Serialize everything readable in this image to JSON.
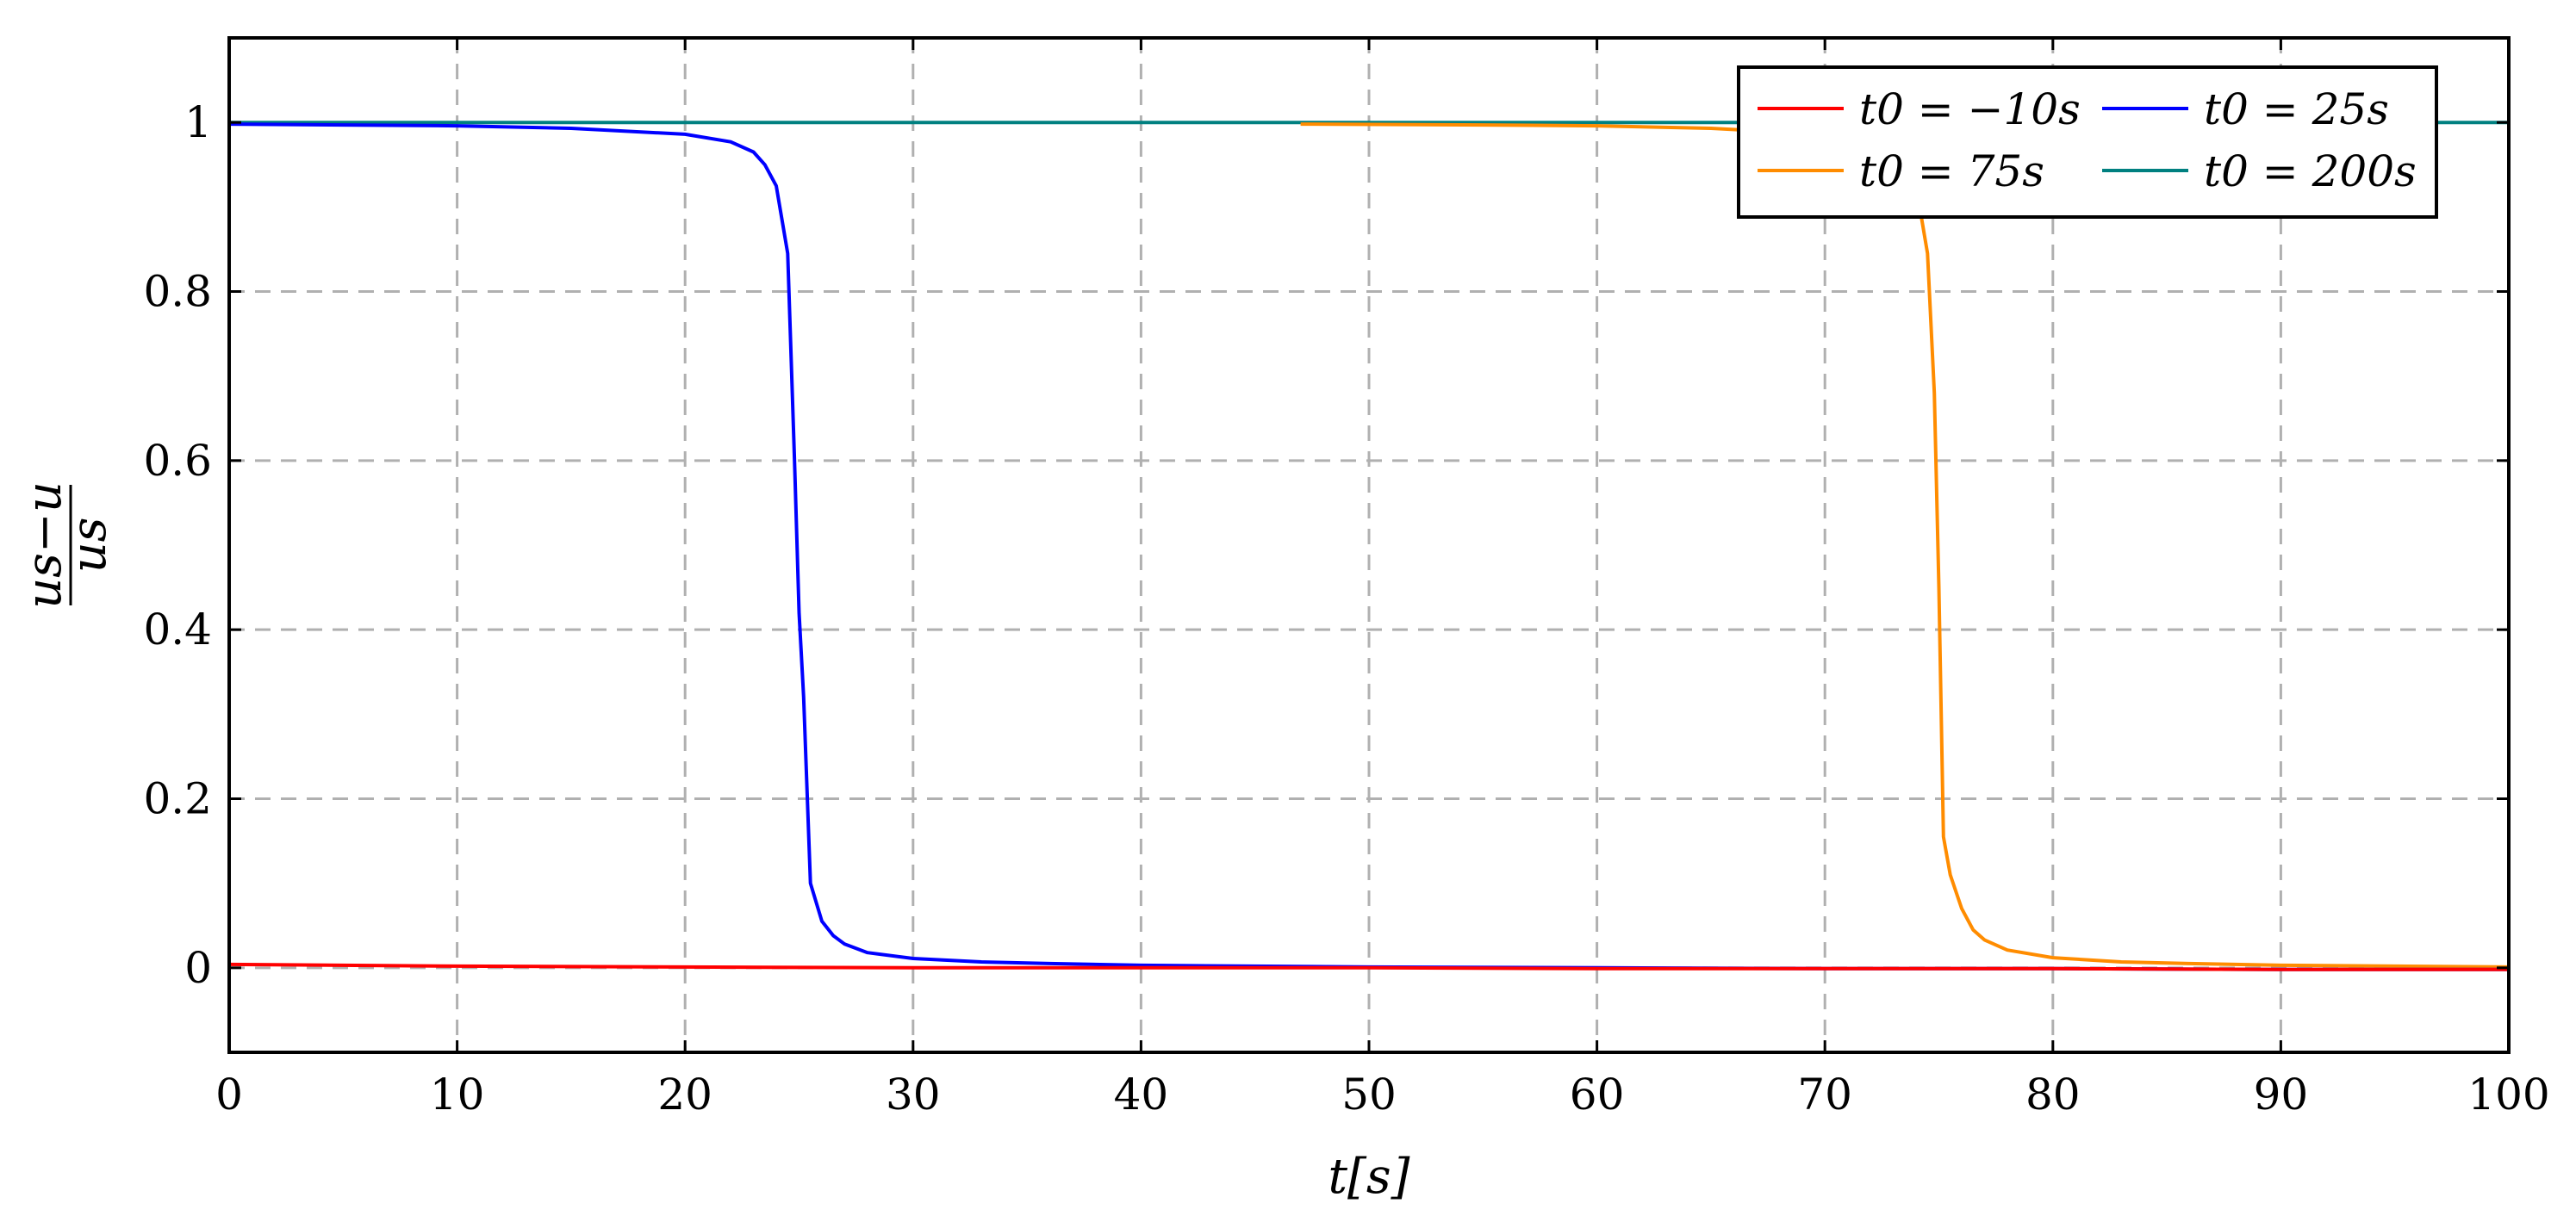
{
  "chart_data": {
    "type": "line",
    "xlabel": "t[s]",
    "ylabel": "(us − u) / us",
    "ylabel_parts": {
      "numerator": "us−u",
      "denominator": "us"
    },
    "xlim": [
      0,
      100
    ],
    "ylim": [
      -0.1,
      1.1
    ],
    "xticks": [
      0,
      10,
      20,
      30,
      40,
      50,
      60,
      70,
      80,
      90,
      100
    ],
    "xtick_labels": [
      "0",
      "10",
      "20",
      "30",
      "40",
      "50",
      "60",
      "70",
      "80",
      "90",
      "100"
    ],
    "yticks": [
      0,
      0.2,
      0.4,
      0.6,
      0.8,
      1
    ],
    "ytick_labels": [
      "0",
      "0.2",
      "0.4",
      "0.6",
      "0.8",
      "1"
    ],
    "grid": true,
    "legend_position": "top-right",
    "legend_columns": 2,
    "series": [
      {
        "name": "t0 = −10s",
        "color": "#ff0000",
        "x": [
          0,
          10,
          20,
          30,
          40,
          50,
          60,
          70,
          80,
          90,
          100
        ],
        "y": [
          0.004,
          0.002,
          0.001,
          0.0,
          0.0,
          0.0,
          -0.001,
          -0.001,
          -0.001,
          -0.002,
          -0.002
        ]
      },
      {
        "name": "t0 = 25s",
        "color": "#0000ff",
        "x": [
          0,
          5,
          10,
          15,
          20,
          22,
          23,
          23.5,
          24,
          24.5,
          24.8,
          25,
          25.2,
          25.5,
          26,
          26.5,
          27,
          28,
          30,
          33,
          36,
          40,
          50,
          60,
          70,
          80,
          90,
          100
        ],
        "y": [
          0.998,
          0.997,
          0.996,
          0.993,
          0.986,
          0.977,
          0.965,
          0.95,
          0.925,
          0.845,
          0.6,
          0.42,
          0.32,
          0.1,
          0.055,
          0.038,
          0.028,
          0.018,
          0.011,
          0.007,
          0.005,
          0.003,
          0.001,
          0.0,
          -0.001,
          -0.001,
          -0.002,
          -0.002
        ]
      },
      {
        "name": "t0 = 75s",
        "color": "#ff8c00",
        "x": [
          47,
          55,
          60,
          65,
          70,
          72,
          73,
          73.5,
          74,
          74.5,
          74.8,
          75,
          75.2,
          75.5,
          76,
          76.5,
          77,
          78,
          80,
          83,
          86,
          90,
          95,
          100
        ],
        "y": [
          0.998,
          0.997,
          0.996,
          0.993,
          0.986,
          0.977,
          0.965,
          0.95,
          0.925,
          0.845,
          0.68,
          0.45,
          0.155,
          0.11,
          0.07,
          0.045,
          0.033,
          0.021,
          0.012,
          0.007,
          0.005,
          0.003,
          0.002,
          0.001
        ]
      },
      {
        "name": "t0 = 200s",
        "color": "#008080",
        "x": [
          0,
          100
        ],
        "y": [
          1.0,
          1.0
        ]
      }
    ]
  }
}
